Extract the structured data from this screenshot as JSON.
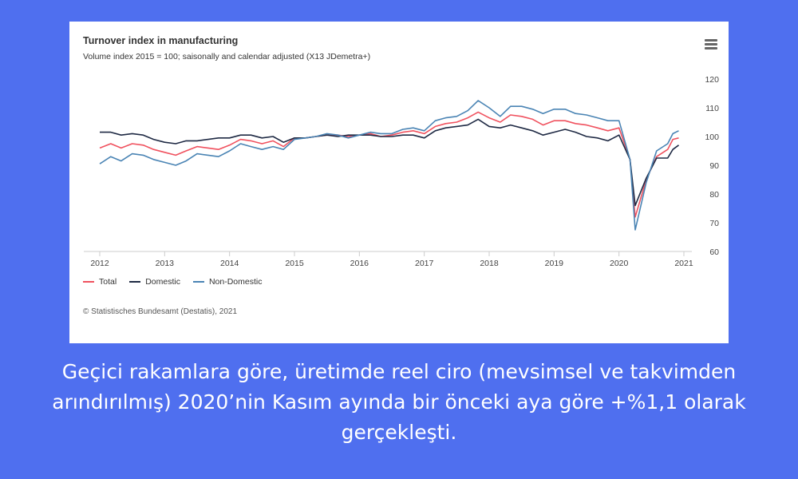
{
  "card": {
    "title": "Turnover index in manufacturing",
    "subtitle": "Volume index 2015 = 100; saisonally and calendar adjusted (X13 JDemetra+)",
    "credit": "© Statistisches Bundesamt (Destatis), 2021",
    "menu_icon": "hamburger-menu-icon"
  },
  "caption": "Geçici rakamlara göre, üretimde reel ciro (mevsimsel ve takvimden arındırılmış) 2020’nin Kasım ayında bir önceki aya göre +%1,1 olarak gerçekleşti.",
  "colors": {
    "background": "#4f6fef",
    "card": "#ffffff",
    "total": "#f0525f",
    "domestic": "#1f2a44",
    "non_domestic": "#4a84b4"
  },
  "chart_data": {
    "type": "line",
    "title": "Turnover index in manufacturing",
    "subtitle": "Volume index 2015 = 100; saisonally and calendar adjusted (X13 JDemetra+)",
    "xlabel": "",
    "ylabel": "",
    "x_ticks": [
      "2012",
      "2013",
      "2014",
      "2015",
      "2016",
      "2017",
      "2018",
      "2019",
      "2020",
      "2021"
    ],
    "y_ticks": [
      60,
      70,
      80,
      90,
      100,
      110,
      120
    ],
    "xlim": [
      2012,
      2021
    ],
    "ylim": [
      60,
      120
    ],
    "grid": false,
    "legend_position": "bottom-left",
    "series": [
      {
        "name": "Total",
        "color": "#f0525f",
        "points": [
          [
            2012.0,
            96
          ],
          [
            2012.17,
            97.5
          ],
          [
            2012.33,
            96
          ],
          [
            2012.5,
            97.5
          ],
          [
            2012.67,
            97
          ],
          [
            2012.83,
            95.5
          ],
          [
            2013.0,
            94.5
          ],
          [
            2013.17,
            93.5
          ],
          [
            2013.33,
            95
          ],
          [
            2013.5,
            96.5
          ],
          [
            2013.67,
            96
          ],
          [
            2013.83,
            95.5
          ],
          [
            2014.0,
            97
          ],
          [
            2014.17,
            99
          ],
          [
            2014.33,
            98.5
          ],
          [
            2014.5,
            97.5
          ],
          [
            2014.67,
            98.5
          ],
          [
            2014.83,
            96.5
          ],
          [
            2015.0,
            99.5
          ],
          [
            2015.17,
            99.5
          ],
          [
            2015.33,
            100
          ],
          [
            2015.5,
            100.5
          ],
          [
            2015.67,
            100.5
          ],
          [
            2015.83,
            100
          ],
          [
            2016.0,
            100.5
          ],
          [
            2016.17,
            101
          ],
          [
            2016.33,
            100
          ],
          [
            2016.5,
            100.5
          ],
          [
            2016.67,
            101.5
          ],
          [
            2016.83,
            102
          ],
          [
            2017.0,
            101
          ],
          [
            2017.17,
            103.5
          ],
          [
            2017.33,
            104.5
          ],
          [
            2017.5,
            105
          ],
          [
            2017.67,
            106.5
          ],
          [
            2017.83,
            108.5
          ],
          [
            2018.0,
            106.5
          ],
          [
            2018.17,
            105
          ],
          [
            2018.33,
            107.5
          ],
          [
            2018.5,
            107
          ],
          [
            2018.67,
            106
          ],
          [
            2018.83,
            104
          ],
          [
            2019.0,
            105.5
          ],
          [
            2019.17,
            105.5
          ],
          [
            2019.33,
            104.5
          ],
          [
            2019.5,
            104
          ],
          [
            2019.67,
            103
          ],
          [
            2019.83,
            102
          ],
          [
            2020.0,
            103
          ],
          [
            2020.17,
            92
          ],
          [
            2020.25,
            72
          ],
          [
            2020.42,
            85
          ],
          [
            2020.58,
            93
          ],
          [
            2020.75,
            95.5
          ],
          [
            2020.83,
            99
          ],
          [
            2020.92,
            99.5
          ]
        ]
      },
      {
        "name": "Domestic",
        "color": "#1f2a44",
        "points": [
          [
            2012.0,
            101.5
          ],
          [
            2012.17,
            101.5
          ],
          [
            2012.33,
            100.5
          ],
          [
            2012.5,
            101
          ],
          [
            2012.67,
            100.5
          ],
          [
            2012.83,
            99
          ],
          [
            2013.0,
            98
          ],
          [
            2013.17,
            97.5
          ],
          [
            2013.33,
            98.5
          ],
          [
            2013.5,
            98.5
          ],
          [
            2013.67,
            99
          ],
          [
            2013.83,
            99.5
          ],
          [
            2014.0,
            99.5
          ],
          [
            2014.17,
            100.5
          ],
          [
            2014.33,
            100.5
          ],
          [
            2014.5,
            99.5
          ],
          [
            2014.67,
            100
          ],
          [
            2014.83,
            98
          ],
          [
            2015.0,
            99.5
          ],
          [
            2015.17,
            99.5
          ],
          [
            2015.33,
            100
          ],
          [
            2015.5,
            100.5
          ],
          [
            2015.67,
            100
          ],
          [
            2015.83,
            100.5
          ],
          [
            2016.0,
            100.5
          ],
          [
            2016.17,
            100.5
          ],
          [
            2016.33,
            100
          ],
          [
            2016.5,
            100
          ],
          [
            2016.67,
            100.5
          ],
          [
            2016.83,
            100.5
          ],
          [
            2017.0,
            99.5
          ],
          [
            2017.17,
            102
          ],
          [
            2017.33,
            103
          ],
          [
            2017.5,
            103.5
          ],
          [
            2017.67,
            104
          ],
          [
            2017.83,
            106
          ],
          [
            2018.0,
            103.5
          ],
          [
            2018.17,
            103
          ],
          [
            2018.33,
            104
          ],
          [
            2018.5,
            103
          ],
          [
            2018.67,
            102
          ],
          [
            2018.83,
            100.5
          ],
          [
            2019.0,
            101.5
          ],
          [
            2019.17,
            102.5
          ],
          [
            2019.33,
            101.5
          ],
          [
            2019.5,
            100
          ],
          [
            2019.67,
            99.5
          ],
          [
            2019.83,
            98.5
          ],
          [
            2020.0,
            100.5
          ],
          [
            2020.17,
            92
          ],
          [
            2020.25,
            76
          ],
          [
            2020.42,
            85.5
          ],
          [
            2020.58,
            92.5
          ],
          [
            2020.75,
            92.5
          ],
          [
            2020.83,
            95.5
          ],
          [
            2020.92,
            97
          ]
        ]
      },
      {
        "name": "Non-Domestic",
        "color": "#4a84b4",
        "points": [
          [
            2012.0,
            90.5
          ],
          [
            2012.17,
            93
          ],
          [
            2012.33,
            91.5
          ],
          [
            2012.5,
            94
          ],
          [
            2012.67,
            93.5
          ],
          [
            2012.83,
            92
          ],
          [
            2013.0,
            91
          ],
          [
            2013.17,
            90
          ],
          [
            2013.33,
            91.5
          ],
          [
            2013.5,
            94
          ],
          [
            2013.67,
            93.5
          ],
          [
            2013.83,
            93
          ],
          [
            2014.0,
            95
          ],
          [
            2014.17,
            97.5
          ],
          [
            2014.33,
            96.5
          ],
          [
            2014.5,
            95.5
          ],
          [
            2014.67,
            96.5
          ],
          [
            2014.83,
            95.5
          ],
          [
            2015.0,
            99
          ],
          [
            2015.17,
            99.5
          ],
          [
            2015.33,
            100
          ],
          [
            2015.5,
            101
          ],
          [
            2015.67,
            100.5
          ],
          [
            2015.83,
            99.5
          ],
          [
            2016.0,
            100.5
          ],
          [
            2016.17,
            101.5
          ],
          [
            2016.33,
            101
          ],
          [
            2016.5,
            101
          ],
          [
            2016.67,
            102.5
          ],
          [
            2016.83,
            103
          ],
          [
            2017.0,
            102
          ],
          [
            2017.17,
            105.5
          ],
          [
            2017.33,
            106.5
          ],
          [
            2017.5,
            107
          ],
          [
            2017.67,
            109
          ],
          [
            2017.83,
            112.5
          ],
          [
            2018.0,
            110
          ],
          [
            2018.17,
            107
          ],
          [
            2018.33,
            110.5
          ],
          [
            2018.5,
            110.5
          ],
          [
            2018.67,
            109.5
          ],
          [
            2018.83,
            108
          ],
          [
            2019.0,
            109.5
          ],
          [
            2019.17,
            109.5
          ],
          [
            2019.33,
            108
          ],
          [
            2019.5,
            107.5
          ],
          [
            2019.67,
            106.5
          ],
          [
            2019.83,
            105.5
          ],
          [
            2020.0,
            105.5
          ],
          [
            2020.17,
            92
          ],
          [
            2020.25,
            67.5
          ],
          [
            2020.42,
            84
          ],
          [
            2020.58,
            95
          ],
          [
            2020.75,
            97.5
          ],
          [
            2020.83,
            101
          ],
          [
            2020.92,
            102
          ]
        ]
      }
    ]
  }
}
